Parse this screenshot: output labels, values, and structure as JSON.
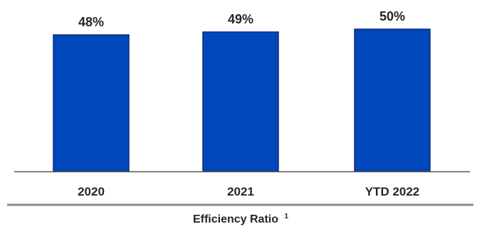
{
  "chart_data": {
    "type": "bar",
    "title": "Efficiency Ratio",
    "title_footnote": "1",
    "categories": [
      "2020",
      "2021",
      "YTD 2022"
    ],
    "values": [
      48,
      49,
      50
    ],
    "value_labels": [
      "48%",
      "49%",
      "50%"
    ],
    "value_unit": "%",
    "ylim": [
      0,
      50
    ],
    "grid": false,
    "legend": "none",
    "colors": {
      "bar": "#0047BB",
      "bar_edge": "#0F2C7A",
      "axis": "#555555",
      "title_rule": "#8C8C8C",
      "text": "#262626"
    }
  }
}
